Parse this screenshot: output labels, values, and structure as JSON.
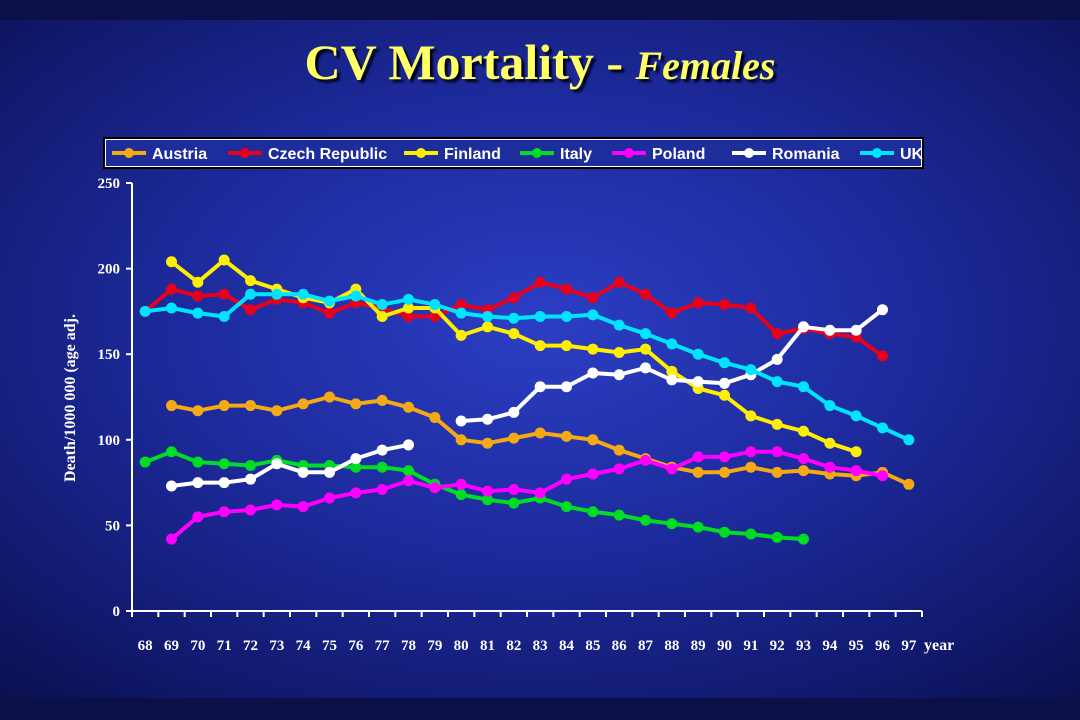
{
  "title": {
    "main": "CV Mortality",
    "separator": " - ",
    "sub": "Females"
  },
  "colors": {
    "background": "#1d2a9c",
    "title": "#ffff66",
    "axis": "#ffffff"
  },
  "chart_data": {
    "type": "line",
    "title": "CV Mortality - Females",
    "xlabel": "year",
    "ylabel": "Death/1000 000 (age adj.",
    "x": [
      "68",
      "69",
      "70",
      "71",
      "72",
      "73",
      "74",
      "75",
      "76",
      "77",
      "78",
      "79",
      "80",
      "81",
      "82",
      "83",
      "84",
      "85",
      "86",
      "87",
      "88",
      "89",
      "90",
      "91",
      "92",
      "93",
      "94",
      "95",
      "96",
      "97"
    ],
    "ylim": [
      0,
      250
    ],
    "yticks": [
      0,
      50,
      100,
      150,
      200,
      250
    ],
    "grid": false,
    "legend_position": "top",
    "series": [
      {
        "name": "Austria",
        "color": "#f5a914",
        "values": [
          null,
          120,
          117,
          120,
          120,
          117,
          121,
          125,
          121,
          123,
          119,
          113,
          100,
          98,
          101,
          104,
          102,
          100,
          94,
          89,
          84,
          81,
          81,
          84,
          81,
          82,
          80,
          79,
          81,
          74
        ]
      },
      {
        "name": "Czech Republic",
        "color": "#e8001c",
        "values": [
          175,
          188,
          184,
          185,
          176,
          182,
          180,
          174,
          180,
          177,
          172,
          172,
          179,
          176,
          183,
          192,
          188,
          183,
          192,
          185,
          174,
          180,
          179,
          177,
          162,
          165,
          162,
          160,
          149,
          null
        ]
      },
      {
        "name": "Finland",
        "color": "#ffee00",
        "values": [
          null,
          204,
          192,
          205,
          193,
          188,
          183,
          180,
          188,
          172,
          177,
          177,
          161,
          166,
          162,
          155,
          155,
          153,
          151,
          153,
          140,
          130,
          126,
          114,
          109,
          105,
          98,
          93,
          null,
          null
        ]
      },
      {
        "name": "Italy",
        "color": "#00dd22",
        "values": [
          87,
          93,
          87,
          86,
          85,
          88,
          85,
          85,
          84,
          84,
          82,
          74,
          68,
          65,
          63,
          66,
          61,
          58,
          56,
          53,
          51,
          49,
          46,
          45,
          43,
          42,
          null,
          null,
          null,
          null
        ]
      },
      {
        "name": "Poland",
        "color": "#ff00ff",
        "values": [
          null,
          42,
          55,
          58,
          59,
          62,
          61,
          66,
          69,
          71,
          76,
          72,
          74,
          70,
          71,
          69,
          77,
          80,
          83,
          88,
          83,
          90,
          90,
          93,
          93,
          89,
          84,
          82,
          79,
          null
        ]
      },
      {
        "name": "Romania",
        "color": "#ffffff",
        "values": [
          null,
          73,
          75,
          75,
          77,
          86,
          81,
          81,
          89,
          94,
          97,
          null,
          111,
          112,
          116,
          131,
          131,
          139,
          138,
          142,
          135,
          134,
          133,
          138,
          147,
          166,
          164,
          164,
          176,
          null
        ]
      },
      {
        "name": "UK",
        "color": "#00e5ff",
        "values": [
          175,
          177,
          174,
          172,
          185,
          185,
          185,
          181,
          184,
          179,
          182,
          179,
          174,
          172,
          171,
          172,
          172,
          173,
          167,
          162,
          156,
          150,
          145,
          141,
          134,
          131,
          120,
          114,
          107,
          100
        ]
      }
    ]
  }
}
